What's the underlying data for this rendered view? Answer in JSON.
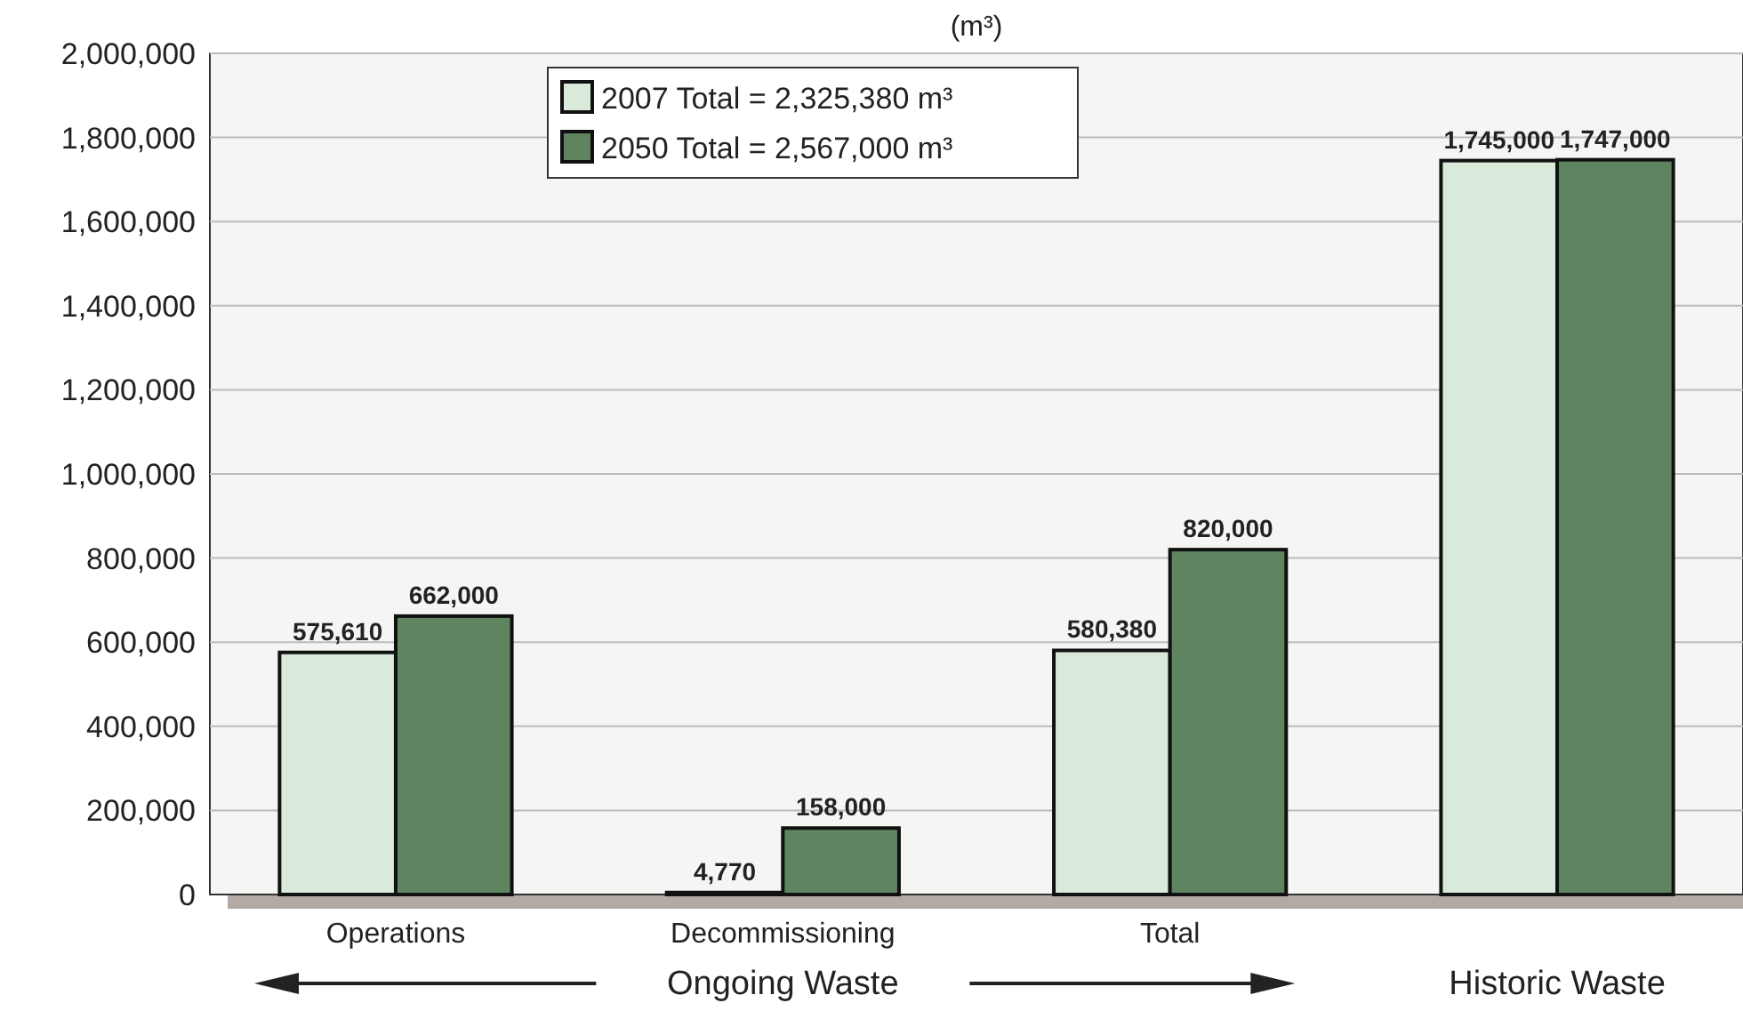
{
  "chart_data": {
    "type": "bar",
    "title": "(m³)",
    "categories": [
      "Operations",
      "Decommissioning",
      "Total",
      null
    ],
    "series": [
      {
        "name": "2007 Total = 2,325,380 m³",
        "color": "#d9eadb",
        "values": [
          575610,
          4770,
          580380,
          1745000
        ],
        "value_labels": [
          "575,610",
          "4,770",
          "580,380",
          "1,745,000"
        ]
      },
      {
        "name": "2050 Total = 2,567,000 m³",
        "color": "#5e8560",
        "values": [
          662000,
          158000,
          820000,
          1747000
        ],
        "value_labels": [
          "662,000",
          "158,000",
          "820,000",
          "1,747,000"
        ]
      }
    ],
    "ylim": [
      0,
      2000000
    ],
    "yticks": [
      0,
      {
        "value": 200000,
        "label": "200,000"
      },
      {
        "value": 400000,
        "label": "400,000"
      },
      {
        "value": 600000,
        "label": "600,000"
      },
      {
        "value": 800000,
        "label": "800,000"
      },
      {
        "value": 1000000,
        "label": "1,000,000"
      },
      {
        "value": 1200000,
        "label": "1,200,000"
      },
      {
        "value": 1400000,
        "label": "1,400,000"
      },
      {
        "value": 1600000,
        "label": "1,600,000"
      },
      {
        "value": 1800000,
        "label": "1,800,000"
      },
      {
        "value": 2000000,
        "label": "2,000,000"
      }
    ],
    "grid": "y",
    "legend": "top left",
    "annotations": [
      "Ongoing Waste",
      "Historic Waste"
    ]
  }
}
